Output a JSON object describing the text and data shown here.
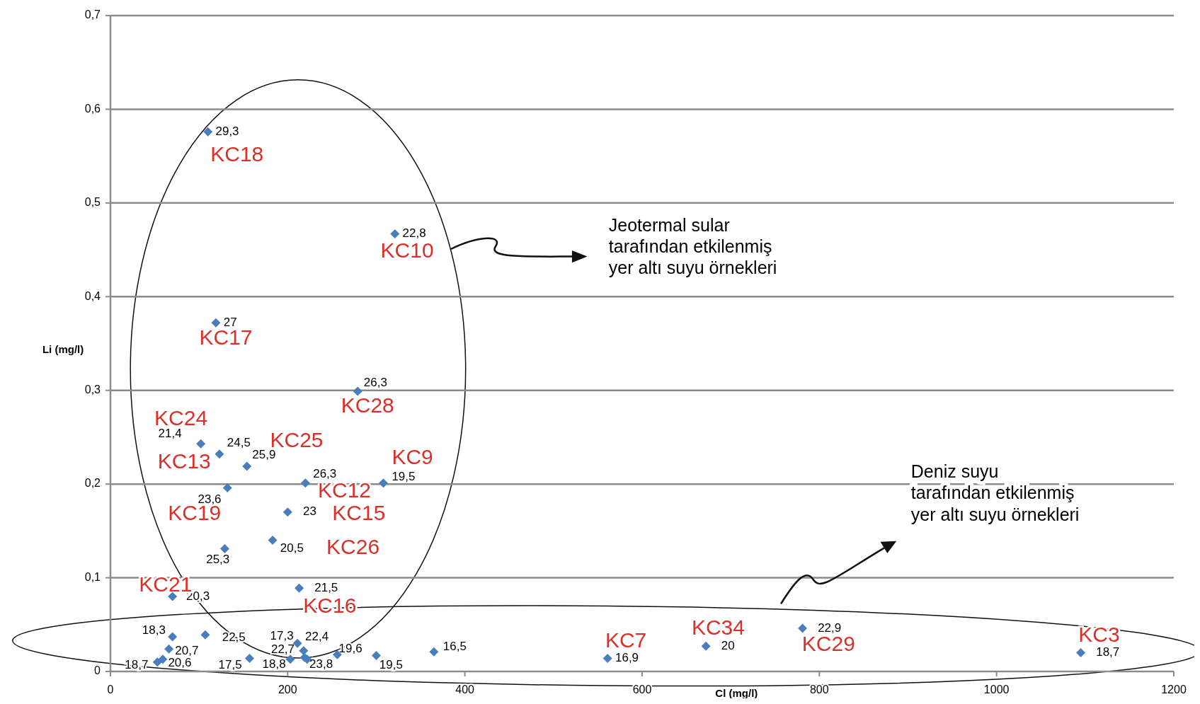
{
  "chart_data": {
    "type": "scatter",
    "xlabel": "Cl (mg/l)",
    "ylabel": "Li (mg/l)",
    "marker": "diamond",
    "grid": "y",
    "color": "#4a7ebb",
    "x": [
      110,
      321,
      119,
      279,
      102,
      123,
      154,
      132,
      220,
      308,
      200,
      183,
      129,
      213,
      70,
      70,
      107,
      66,
      53,
      59,
      157,
      203,
      211,
      218,
      219,
      222,
      256,
      300,
      365,
      561,
      672,
      781,
      1095
    ],
    "values": [
      0.576,
      0.467,
      0.372,
      0.299,
      0.243,
      0.232,
      0.219,
      0.196,
      0.201,
      0.201,
      0.17,
      0.14,
      0.131,
      0.089,
      0.08,
      0.037,
      0.039,
      0.024,
      0.01,
      0.013,
      0.014,
      0.013,
      0.03,
      0.022,
      0.015,
      0.013,
      0.018,
      0.017,
      0.021,
      0.014,
      0.027,
      0.046,
      0.02
    ],
    "xlim": [
      0,
      1200
    ],
    "xticks": [
      0,
      200,
      400,
      600,
      800,
      1000,
      1200
    ],
    "ylim": [
      0,
      0.7
    ],
    "yticks": [
      0,
      {
        "value": 0.1,
        "label": "0,1"
      },
      {
        "value": 0.2,
        "label": "0,2"
      },
      {
        "value": 0.3,
        "label": "0,3"
      },
      {
        "value": 0.4,
        "label": "0,4"
      },
      {
        "value": 0.5,
        "label": "0,5"
      },
      {
        "value": 0.6,
        "label": "0,6"
      },
      {
        "value": 0.7,
        "label": "0,7"
      }
    ],
    "annotations": [
      {
        "text": "29,3",
        "x": 110,
        "y": 0.576
      },
      {
        "text": "22,8",
        "x": 321,
        "y": 0.467
      },
      {
        "text": "27",
        "x": 119,
        "y": 0.372
      },
      {
        "text": "26,3",
        "x": 279,
        "y": 0.299
      },
      {
        "text": "21,4",
        "x": 102,
        "y": 0.243
      },
      {
        "text": "24,5",
        "x": 123,
        "y": 0.232
      },
      {
        "text": "25,9",
        "x": 154,
        "y": 0.219
      },
      {
        "text": "23,6",
        "x": 132,
        "y": 0.196
      },
      {
        "text": "26,3",
        "x": 220,
        "y": 0.201
      },
      {
        "text": "19,5",
        "x": 308,
        "y": 0.201
      },
      {
        "text": "23",
        "x": 200,
        "y": 0.17
      },
      {
        "text": "20,5",
        "x": 183,
        "y": 0.14
      },
      {
        "text": "25,3",
        "x": 129,
        "y": 0.131
      },
      {
        "text": "21,5",
        "x": 213,
        "y": 0.089
      },
      {
        "text": "20,3",
        "x": 70,
        "y": 0.08
      },
      {
        "text": "18,3",
        "x": 70,
        "y": 0.037
      },
      {
        "text": "22,5",
        "x": 107,
        "y": 0.039
      },
      {
        "text": "20,7",
        "x": 66,
        "y": 0.024
      },
      {
        "text": "18,7",
        "x": 53,
        "y": 0.01
      },
      {
        "text": "20,6",
        "x": 59,
        "y": 0.013
      },
      {
        "text": "17,5",
        "x": 157,
        "y": 0.014
      },
      {
        "text": "18,8",
        "x": 203,
        "y": 0.013
      },
      {
        "text": "17,3",
        "x": 211,
        "y": 0.03
      },
      {
        "text": "22,4",
        "x": 218,
        "y": 0.022
      },
      {
        "text": "22,7",
        "x": 219,
        "y": 0.015
      },
      {
        "text": "23,8",
        "x": 222,
        "y": 0.013
      },
      {
        "text": "19,6",
        "x": 256,
        "y": 0.018
      },
      {
        "text": "19,5",
        "x": 300,
        "y": 0.017
      },
      {
        "text": "16,5",
        "x": 365,
        "y": 0.021
      },
      {
        "text": "16,9",
        "x": 561,
        "y": 0.014
      },
      {
        "text": "20",
        "x": 672,
        "y": 0.027
      },
      {
        "text": "22,9",
        "x": 781,
        "y": 0.046
      },
      {
        "text": "18,7",
        "x": 1095,
        "y": 0.02
      },
      {
        "text": "KC18",
        "x": 110,
        "y": 0.576
      },
      {
        "text": "KC10",
        "x": 321,
        "y": 0.467
      },
      {
        "text": "KC17",
        "x": 119,
        "y": 0.372
      },
      {
        "text": "KC28",
        "x": 279,
        "y": 0.299
      },
      {
        "text": "KC24",
        "x": 102,
        "y": 0.243
      },
      {
        "text": "KC13",
        "x": 123,
        "y": 0.232
      },
      {
        "text": "KC25",
        "x": 154,
        "y": 0.219
      },
      {
        "text": "KC19",
        "x": 132,
        "y": 0.196
      },
      {
        "text": "KC12",
        "x": 220,
        "y": 0.201
      },
      {
        "text": "KC9",
        "x": 308,
        "y": 0.201
      },
      {
        "text": "KC15",
        "x": 200,
        "y": 0.17
      },
      {
        "text": "KC26",
        "x": 183,
        "y": 0.14
      },
      {
        "text": "KC16",
        "x": 213,
        "y": 0.089
      },
      {
        "text": "KC21",
        "x": 70,
        "y": 0.08
      },
      {
        "text": "KC7",
        "x": 561,
        "y": 0.014
      },
      {
        "text": "KC34",
        "x": 672,
        "y": 0.027
      },
      {
        "text": "KC29",
        "x": 781,
        "y": 0.046
      },
      {
        "text": "KC3",
        "x": 1095,
        "y": 0.02
      },
      "Jeotermal sular\ntarafından etkilenmiş\nyer altı suyu örnekleri",
      "Deniz suyu\ntarafından etkilenmiş\nyer altı suyu örnekleri"
    ]
  }
}
